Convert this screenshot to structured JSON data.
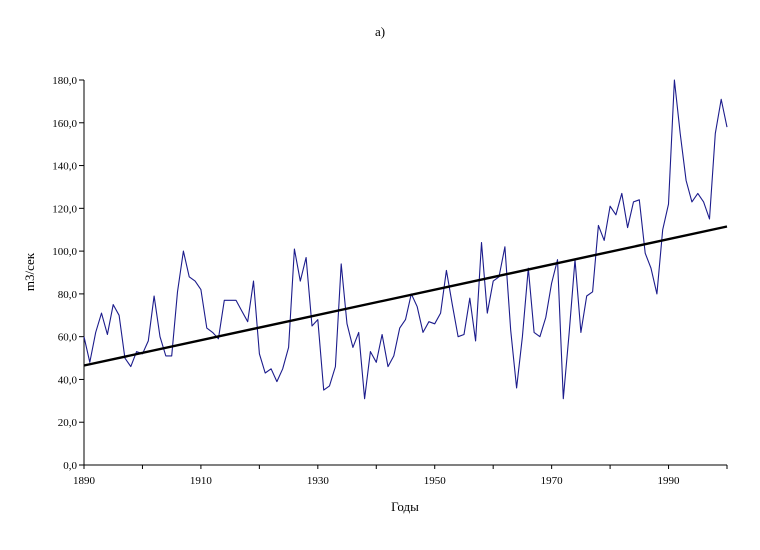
{
  "chart_data": {
    "type": "line",
    "title": "а)",
    "xlabel": "Годы",
    "ylabel": "m3/сек",
    "xlim": [
      1890,
      2000
    ],
    "ylim": [
      0,
      180
    ],
    "x_ticks": [
      "1890",
      "1910",
      "1930",
      "1950",
      "1970",
      "1990"
    ],
    "y_ticks": [
      "0,0",
      "20,0",
      "40,0",
      "60,0",
      "80,0",
      "100,0",
      "120,0",
      "140,0",
      "160,0",
      "180,0"
    ],
    "grid": false,
    "legend": "none",
    "series": [
      {
        "color": "#1c1c8c",
        "x": [
          1890,
          1891,
          1892,
          1893,
          1894,
          1895,
          1896,
          1897,
          1898,
          1899,
          1900,
          1901,
          1902,
          1903,
          1904,
          1905,
          1906,
          1907,
          1908,
          1909,
          1910,
          1911,
          1912,
          1913,
          1914,
          1915,
          1916,
          1917,
          1918,
          1919,
          1920,
          1921,
          1922,
          1923,
          1924,
          1925,
          1926,
          1927,
          1928,
          1929,
          1930,
          1931,
          1932,
          1933,
          1934,
          1935,
          1936,
          1937,
          1938,
          1939,
          1940,
          1941,
          1942,
          1943,
          1944,
          1945,
          1946,
          1947,
          1948,
          1949,
          1950,
          1951,
          1952,
          1953,
          1954,
          1955,
          1956,
          1957,
          1958,
          1959,
          1960,
          1961,
          1962,
          1963,
          1964,
          1965,
          1966,
          1967,
          1968,
          1969,
          1970,
          1971,
          1972,
          1973,
          1974,
          1975,
          1976,
          1977,
          1978,
          1979,
          1980,
          1981,
          1982,
          1983,
          1984,
          1985,
          1986,
          1987,
          1988,
          1989,
          1990,
          1991,
          1992,
          1993,
          1994,
          1995,
          1996,
          1997,
          1998,
          1999,
          2000
        ],
        "y": [
          60,
          48,
          62,
          71,
          61,
          75,
          70,
          50,
          46,
          53,
          52,
          58,
          79,
          60,
          51,
          51,
          81,
          100,
          88,
          86,
          82,
          64,
          62,
          59,
          77,
          77,
          77,
          72,
          67,
          86,
          52,
          43,
          45,
          39,
          45,
          55,
          101,
          86,
          97,
          65,
          68,
          35,
          37,
          46,
          94,
          66,
          55,
          62,
          31,
          53,
          48,
          61,
          46,
          51,
          64,
          68,
          80,
          74,
          62,
          67,
          66,
          71,
          91,
          75,
          60,
          61,
          78,
          58,
          104,
          71,
          86,
          88,
          102,
          63,
          36,
          60,
          92,
          62,
          60,
          69,
          85,
          96,
          31,
          62,
          96,
          62,
          79,
          81,
          112,
          105,
          121,
          117,
          127,
          111,
          123,
          124,
          99,
          92,
          80,
          110,
          122,
          180,
          155,
          133,
          123,
          127,
          123,
          115,
          155,
          171,
          158
        ]
      },
      {
        "name": "trend",
        "color": "#000000",
        "x": [
          1890,
          2000
        ],
        "y": [
          46.5,
          111.5
        ]
      }
    ]
  }
}
